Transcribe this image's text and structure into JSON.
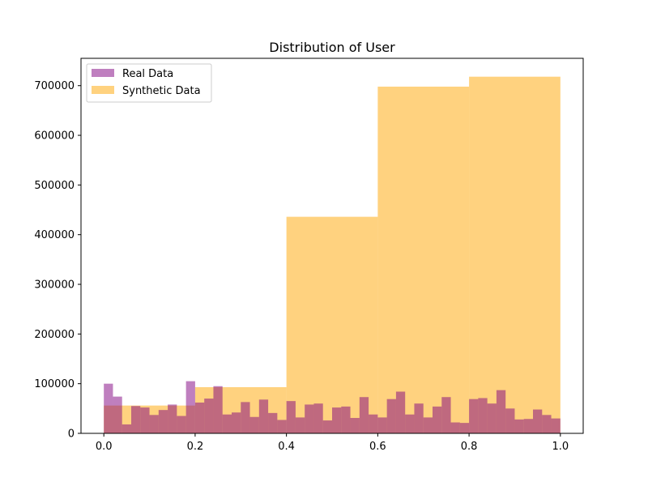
{
  "chart_data": {
    "type": "bar",
    "title": "Distribution of User",
    "xlabel": "",
    "ylabel": "",
    "xlim": [
      -0.05,
      1.05
    ],
    "ylim": [
      0,
      755000
    ],
    "xticks": [
      0.0,
      0.2,
      0.4,
      0.6,
      0.8,
      1.0
    ],
    "xtick_labels": [
      "0.0",
      "0.2",
      "0.4",
      "0.6",
      "0.8",
      "1.0"
    ],
    "yticks": [
      0,
      100000,
      200000,
      300000,
      400000,
      500000,
      600000,
      700000
    ],
    "ytick_labels": [
      "0",
      "100000",
      "200000",
      "300000",
      "400000",
      "500000",
      "600000",
      "700000"
    ],
    "legend": {
      "placement": "top-left"
    },
    "grid": false,
    "series": [
      {
        "name": "Real Data",
        "color": "#800080",
        "opacity": 0.5,
        "bin_edges": [
          0.0,
          0.02,
          0.04,
          0.06,
          0.08,
          0.1,
          0.12,
          0.14,
          0.16,
          0.18,
          0.2,
          0.22,
          0.24,
          0.26,
          0.28,
          0.3,
          0.32,
          0.34,
          0.36,
          0.38,
          0.4,
          0.42,
          0.44,
          0.46,
          0.48,
          0.5,
          0.52,
          0.54,
          0.56,
          0.58,
          0.6,
          0.62,
          0.64,
          0.66,
          0.68,
          0.7,
          0.72,
          0.74,
          0.76,
          0.78,
          0.8,
          0.82,
          0.84,
          0.86,
          0.88,
          0.9,
          0.92,
          0.94,
          0.96,
          0.98,
          1.0
        ],
        "values": [
          100000,
          74000,
          18000,
          55000,
          52000,
          37000,
          47000,
          58000,
          35000,
          105000,
          62000,
          70000,
          95000,
          38000,
          42000,
          63000,
          33000,
          68000,
          41000,
          27000,
          65000,
          32000,
          58000,
          60000,
          26000,
          52000,
          54000,
          31000,
          73000,
          38000,
          32000,
          69000,
          84000,
          38000,
          60000,
          32000,
          54000,
          73000,
          22000,
          21000,
          69000,
          71000,
          60000,
          87000,
          50000,
          28000,
          29000,
          48000,
          37000,
          30000
        ]
      },
      {
        "name": "Synthetic Data",
        "color": "#FFA500",
        "opacity": 0.5,
        "bin_edges": [
          0.0,
          0.04,
          0.06,
          0.08,
          0.1,
          0.12,
          0.14,
          0.16,
          0.18,
          0.2,
          0.22,
          0.24,
          0.26,
          0.28,
          0.3,
          0.32,
          0.34,
          0.36,
          0.38,
          0.4,
          0.42,
          0.44,
          0.46,
          0.48,
          0.5,
          0.52,
          0.54,
          0.56,
          0.58,
          0.6,
          0.62,
          0.64,
          0.66,
          0.68,
          0.7,
          0.72,
          0.74,
          0.76,
          0.78,
          0.8,
          0.82,
          0.84,
          0.86,
          0.88,
          0.9,
          0.92,
          0.94,
          0.96,
          0.98,
          1.0
        ],
        "background_bins": [
          {
            "x0": 0.0,
            "x1": 0.2,
            "value": 56000
          },
          {
            "x0": 0.2,
            "x1": 0.4,
            "value": 93000
          },
          {
            "x0": 0.4,
            "x1": 0.6,
            "value": 436000
          },
          {
            "x0": 0.6,
            "x1": 0.8,
            "value": 698000
          },
          {
            "x0": 0.8,
            "x1": 1.0,
            "value": 718000
          }
        ]
      }
    ]
  }
}
